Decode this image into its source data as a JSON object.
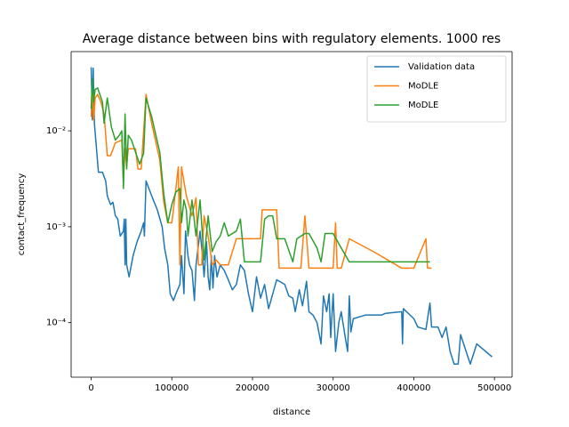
{
  "chart_data": {
    "type": "line",
    "title": "Average distance between bins with regulatory elements. 1000 res",
    "xlabel": "distance",
    "ylabel": "contact_frequency",
    "xlim": [
      -24850,
      521850
    ],
    "ylim": [
      2.7e-05,
      0.067
    ],
    "yscale": "log",
    "xticks": [
      0,
      100000,
      200000,
      300000,
      400000,
      500000
    ],
    "yticks": [
      {
        "value": 0.0001,
        "label": "10⁻⁴"
      },
      {
        "value": 0.001,
        "label": "10⁻³"
      },
      {
        "value": 0.01,
        "label": "10⁻²"
      }
    ],
    "legend": "upper right",
    "series": [
      {
        "name": "Validation data",
        "color": "#1f77b4",
        "x": [
          0,
          1500,
          2500,
          4000,
          6000,
          9000,
          14000,
          18000,
          20000,
          24000,
          27000,
          30000,
          33000,
          36000,
          40000,
          41000,
          42000,
          43000,
          44000,
          47000,
          52000,
          57000,
          62000,
          65000,
          66000,
          68000,
          75000,
          82000,
          88000,
          91000,
          95000,
          98000,
          102000,
          105000,
          110000,
          112000,
          115000,
          117000,
          120000,
          122000,
          125000,
          128000,
          130000,
          135000,
          138000,
          140000,
          143000,
          145000,
          147000,
          149000,
          151000,
          153000,
          156000,
          160000,
          165000,
          170000,
          175000,
          180000,
          185000,
          190000,
          195000,
          200000,
          205000,
          210000,
          215000,
          220000,
          230000,
          240000,
          245000,
          250000,
          253000,
          258000,
          262000,
          267000,
          270000,
          275000,
          280000,
          285000,
          288000,
          292000,
          295000,
          297000,
          300000,
          303000,
          307000,
          310000,
          315000,
          318000,
          320000,
          322000,
          325000,
          340000,
          360000,
          365000,
          385000,
          386000,
          387000,
          400000,
          405000,
          415000,
          420000,
          422000,
          430000,
          435000,
          440000,
          445000,
          450000,
          455000,
          458000,
          470000,
          478000,
          497000
        ],
        "values": [
          0.046,
          0.013,
          0.045,
          0.012,
          0.0075,
          0.0037,
          0.0037,
          0.003,
          0.0021,
          0.0017,
          0.0018,
          0.0013,
          0.0012,
          0.0008,
          0.0009,
          0.0012,
          0.0004,
          0.0012,
          0.0004,
          0.0003,
          0.0005,
          0.0007,
          0.0009,
          0.0011,
          0.0008,
          0.003,
          0.0021,
          0.0015,
          0.001,
          0.0006,
          0.0004,
          0.0002,
          0.00017,
          0.0002,
          0.00025,
          0.0005,
          0.0002,
          0.0009,
          0.0005,
          0.0004,
          0.00035,
          0.00017,
          0.0004,
          0.0009,
          0.0005,
          0.0003,
          0.0007,
          0.0003,
          0.00022,
          0.0005,
          0.00023,
          0.0005,
          0.0003,
          0.0004,
          0.00035,
          0.00028,
          0.00022,
          0.00025,
          0.0004,
          0.00035,
          0.0002,
          0.00013,
          0.0003,
          0.00018,
          0.00025,
          0.00014,
          0.00028,
          0.00025,
          0.00019,
          0.00018,
          0.00013,
          0.00022,
          0.00015,
          0.00027,
          0.00013,
          0.00012,
          0.0001,
          6e-05,
          0.00019,
          0.00013,
          0.0002,
          7e-05,
          0.0002,
          5e-05,
          0.0001,
          0.00013,
          7e-05,
          5e-05,
          0.00019,
          8e-05,
          0.00011,
          0.00012,
          0.00012,
          0.000125,
          0.00013,
          6e-05,
          0.00014,
          0.00011,
          9e-05,
          8.5e-05,
          0.00016,
          9e-05,
          9e-05,
          7e-05,
          9e-05,
          5e-05,
          3.7e-05,
          3.7e-05,
          7.5e-05,
          3.7e-05,
          6e-05,
          4.4e-05
        ]
      },
      {
        "name": "MoDLE",
        "color": "#ff7f0e",
        "x": [
          0,
          1500,
          3000,
          5000,
          8000,
          12000,
          16000,
          20000,
          24000,
          30000,
          38000,
          40000,
          42000,
          44000,
          46000,
          52000,
          55000,
          58000,
          62000,
          68000,
          75000,
          85000,
          90000,
          95000,
          100000,
          105000,
          108000,
          110000,
          112000,
          118000,
          125000,
          130000,
          133000,
          137000,
          140000,
          145000,
          150000,
          155000,
          160000,
          170000,
          180000,
          200000,
          210000,
          212000,
          230000,
          233000,
          250000,
          260000,
          265000,
          270000,
          300000,
          303000,
          305000,
          310000,
          320000,
          350000,
          385000,
          400000,
          415000,
          417000,
          422000
        ],
        "values": [
          0.014,
          0.03,
          0.013,
          0.022,
          0.024,
          0.02,
          0.015,
          0.0055,
          0.0055,
          0.0075,
          0.008,
          0.003,
          0.0065,
          0.0043,
          0.0065,
          0.0065,
          0.0065,
          0.004,
          0.004,
          0.024,
          0.012,
          0.005,
          0.0018,
          0.0011,
          0.0011,
          0.0025,
          0.0042,
          0.0004,
          0.0042,
          0.0021,
          0.0013,
          0.002,
          0.0004,
          0.0004,
          0.0013,
          0.0008,
          0.0004,
          0.00045,
          0.0004,
          0.0004,
          0.00075,
          0.00075,
          0.00075,
          0.0015,
          0.0015,
          0.00037,
          0.00037,
          0.00037,
          0.0013,
          0.00037,
          0.00037,
          0.0011,
          0.00037,
          0.00037,
          0.00075,
          0.00055,
          0.00037,
          0.00037,
          0.00075,
          0.00037,
          0.00037
        ]
      },
      {
        "name": "MoDLE",
        "color": "#2ca02c",
        "x": [
          0,
          1500,
          3000,
          5000,
          8000,
          14000,
          16000,
          20000,
          25000,
          30000,
          35000,
          38000,
          40000,
          42000,
          44000,
          46000,
          50000,
          55000,
          60000,
          65000,
          68000,
          75000,
          85000,
          90000,
          95000,
          100000,
          105000,
          110000,
          112000,
          115000,
          118000,
          120000,
          125000,
          130000,
          135000,
          140000,
          145000,
          150000,
          155000,
          160000,
          165000,
          170000,
          180000,
          185000,
          190000,
          195000,
          210000,
          215000,
          220000,
          225000,
          230000,
          240000,
          250000,
          255000,
          265000,
          270000,
          280000,
          285000,
          290000,
          300000,
          310000,
          320000,
          400000,
          420000
        ],
        "values": [
          0.017,
          0.035,
          0.02,
          0.027,
          0.028,
          0.02,
          0.012,
          0.022,
          0.011,
          0.008,
          0.009,
          0.01,
          0.0025,
          0.015,
          0.004,
          0.009,
          0.008,
          0.006,
          0.0045,
          0.0058,
          0.022,
          0.014,
          0.006,
          0.0022,
          0.0011,
          0.0017,
          0.0023,
          0.0025,
          0.0011,
          0.0019,
          0.0015,
          0.0008,
          0.0019,
          0.0008,
          0.0019,
          0.00045,
          0.0013,
          0.00055,
          0.0007,
          0.0008,
          0.0011,
          0.0008,
          0.0009,
          0.0012,
          0.00043,
          0.00043,
          0.00043,
          0.0012,
          0.0013,
          0.0013,
          0.00075,
          0.00075,
          0.00043,
          0.00075,
          0.00085,
          0.00085,
          0.0006,
          0.00043,
          0.00085,
          0.00085,
          0.0006,
          0.00043,
          0.00043,
          0.00043
        ]
      }
    ]
  }
}
